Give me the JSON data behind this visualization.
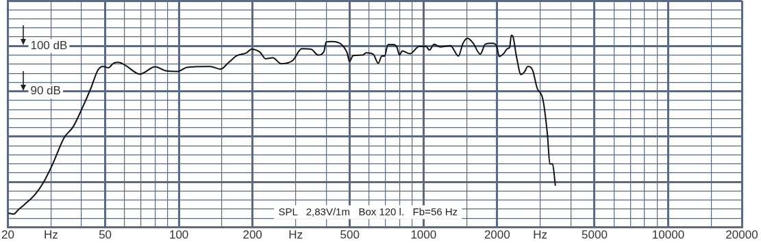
{
  "chart_data": {
    "type": "line",
    "xlim": [
      20,
      20000
    ],
    "ylim": [
      60,
      110
    ],
    "log": "x",
    "grid": true,
    "legend": false,
    "marker": "none",
    "line_style": "solid",
    "xticks": [
      20,
      {
        "value": 30,
        "label": "Hz"
      },
      {
        "value": 40,
        "label": null
      },
      50,
      {
        "value": 60,
        "label": null
      },
      {
        "value": 70,
        "label": null
      },
      {
        "value": 80,
        "label": null
      },
      {
        "value": 90,
        "label": null
      },
      100,
      {
        "value": 150,
        "label": null
      },
      200,
      {
        "value": 300,
        "label": "Hz"
      },
      {
        "value": 400,
        "label": null
      },
      500,
      {
        "value": 600,
        "label": null
      },
      {
        "value": 700,
        "label": null
      },
      {
        "value": 800,
        "label": null
      },
      {
        "value": 900,
        "label": null
      },
      1000,
      {
        "value": 1500,
        "label": null
      },
      2000,
      {
        "value": 3000,
        "label": "Hz"
      },
      {
        "value": 4000,
        "label": null
      },
      5000,
      {
        "value": 6000,
        "label": null
      },
      {
        "value": 7000,
        "label": null
      },
      {
        "value": 8000,
        "label": null
      },
      {
        "value": 9000,
        "label": null
      },
      10000,
      {
        "value": 15000,
        "label": null
      },
      20000
    ],
    "yticks": [
      {
        "value": 60,
        "label": null
      },
      {
        "value": 62,
        "label": null
      },
      {
        "value": 64,
        "label": null
      },
      {
        "value": 66,
        "label": null
      },
      {
        "value": 68,
        "label": null
      },
      {
        "value": 70,
        "label": null
      },
      {
        "value": 72,
        "label": null
      },
      {
        "value": 74,
        "label": null
      },
      {
        "value": 76,
        "label": null
      },
      {
        "value": 78,
        "label": null
      },
      {
        "value": 80,
        "label": null
      },
      {
        "value": 82,
        "label": null
      },
      {
        "value": 84,
        "label": null
      },
      {
        "value": 86,
        "label": null
      },
      {
        "value": 88,
        "label": null
      },
      {
        "value": 90,
        "label": "90 dB"
      },
      {
        "value": 92,
        "label": null
      },
      {
        "value": 94,
        "label": null
      },
      {
        "value": 96,
        "label": null
      },
      {
        "value": 98,
        "label": null
      },
      {
        "value": 100,
        "label": "100 dB"
      },
      {
        "value": 102,
        "label": null
      },
      {
        "value": 104,
        "label": null
      },
      {
        "value": 106,
        "label": null
      },
      {
        "value": 108,
        "label": null
      },
      {
        "value": 110,
        "label": null
      }
    ],
    "annotations": [
      "SPL   2,83V/1m   Box 120 l.   Fb=56 Hz"
    ],
    "series": [
      {
        "color": "#111111",
        "x": [
          20.2,
          21.1,
          22.0,
          23.0,
          24.5,
          25.9,
          27.9,
          30.4,
          34.0,
          37.0,
          40.2,
          43.7,
          46.7,
          48.9,
          51.6,
          54.0,
          56.7,
          60.6,
          69.3,
          80.0,
          89.1,
          99.1,
          108,
          134,
          148,
          160,
          173,
          189,
          198,
          215,
          226,
          242,
          262,
          292,
          318,
          347,
          371,
          392,
          400,
          422,
          461,
          488,
          498,
          516,
          564,
          582,
          623,
          653,
          676,
          693,
          716,
          756,
          780,
          798,
          818,
          880,
          960,
          1024,
          1057,
          1104,
          1168,
          1287,
          1389,
          1450,
          1514,
          1597,
          1706,
          1789,
          1909,
          1994,
          2037,
          2124,
          2201,
          2249,
          2286,
          2320,
          2398,
          2504,
          2586,
          2670,
          2790,
          2914,
          3076,
          3212,
          3283,
          3368,
          3457
        ],
        "values": [
          63.1,
          62.9,
          63.8,
          64.7,
          66.0,
          67.3,
          69.8,
          73.8,
          79.8,
          82.2,
          86.2,
          90.7,
          94.7,
          95.5,
          95.2,
          96.2,
          96.4,
          95.7,
          93.8,
          95.4,
          94.5,
          94.4,
          95.3,
          95.5,
          94.9,
          96.4,
          97.9,
          98.5,
          99.3,
          98.6,
          97.2,
          97.4,
          96.1,
          96.8,
          99.4,
          99.3,
          98.0,
          98.8,
          100.9,
          101.0,
          100.4,
          98.4,
          96.6,
          97.9,
          98.0,
          98.5,
          98.2,
          96.2,
          97.8,
          97.8,
          100.3,
          100.3,
          99.6,
          98.0,
          98.9,
          98.3,
          99.9,
          99.9,
          99.1,
          100.4,
          99.8,
          100.1,
          97.8,
          100.6,
          101.7,
          100.6,
          98.2,
          100.4,
          100.6,
          99.9,
          97.7,
          98.3,
          99.4,
          99.7,
          102.4,
          102.1,
          97.7,
          93.7,
          94.3,
          95.5,
          94.7,
          90.7,
          88.2,
          80.3,
          74.0,
          74.0,
          69.3
        ]
      }
    ]
  }
}
